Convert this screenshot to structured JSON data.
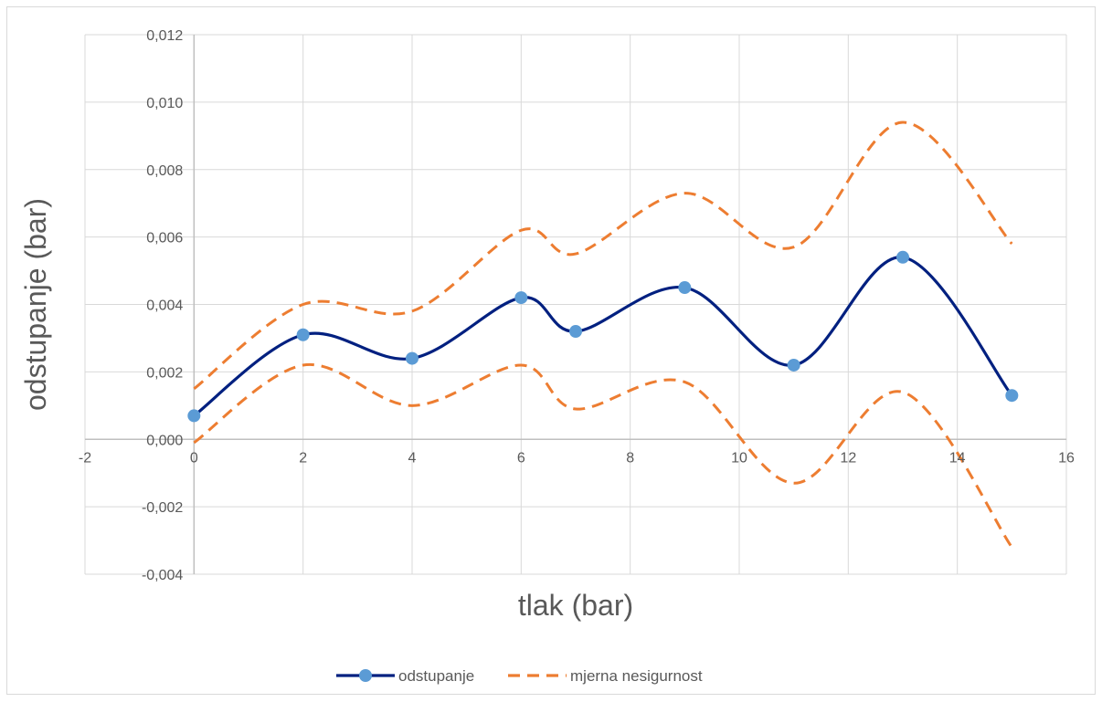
{
  "chart_data": {
    "type": "scatter",
    "title": "",
    "xlabel": "tlak (bar)",
    "ylabel": "odstupanje (bar)",
    "xlim": [
      -2,
      16
    ],
    "ylim": [
      -0.004,
      0.012
    ],
    "x_ticks": [
      -2,
      0,
      2,
      4,
      6,
      8,
      10,
      12,
      14,
      16
    ],
    "y_ticks": [
      -0.004,
      -0.002,
      0,
      0.002,
      0.004,
      0.006,
      0.008,
      0.01,
      0.012
    ],
    "x_tick_labels": [
      "-2",
      "0",
      "2",
      "4",
      "6",
      "8",
      "10",
      "12",
      "14",
      "16"
    ],
    "y_tick_labels": [
      "-0,004",
      "-0,002",
      "0,000",
      "0,002",
      "0,004",
      "0,006",
      "0,008",
      "0,010",
      "0,012"
    ],
    "grid": true,
    "smooth_lines": true,
    "legend_position": "bottom",
    "series": [
      {
        "name": "odstupanje",
        "color": "#002080",
        "marker_color": "#5b9bd5",
        "style": "solid-with-markers",
        "x": [
          0,
          2,
          4,
          6,
          7,
          9,
          11,
          13,
          15
        ],
        "y": [
          0.0007,
          0.0031,
          0.0024,
          0.0042,
          0.0032,
          0.0045,
          0.0022,
          0.0054,
          0.0013
        ]
      },
      {
        "name": "mjerna nesigurnost",
        "color": "#ed7d31",
        "style": "dashed",
        "x": [
          0,
          2,
          4,
          6,
          7,
          9,
          11,
          13,
          15
        ],
        "y": [
          0.0015,
          0.004,
          0.0038,
          0.0062,
          0.0055,
          0.0073,
          0.0057,
          0.0094,
          0.0058
        ]
      },
      {
        "name": "",
        "color": "#ed7d31",
        "style": "dashed",
        "legend": false,
        "x": [
          0,
          2,
          4,
          6,
          7,
          9,
          11,
          13,
          15
        ],
        "y": [
          -0.0001,
          0.0022,
          0.001,
          0.0022,
          0.0009,
          0.0017,
          -0.0013,
          0.0014,
          -0.0032
        ]
      }
    ]
  }
}
